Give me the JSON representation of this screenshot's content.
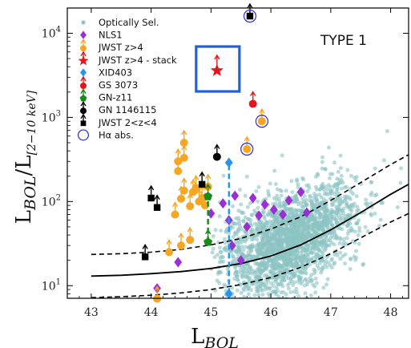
{
  "chart_data": {
    "type": "scatter",
    "annotation": "TYPE 1",
    "xlabel_main": "L",
    "xlabel_sub": "BOL",
    "ylabel_main": "L",
    "ylabel_sub": "BOL",
    "ylabel_slash": "/L",
    "ylabel_sub2": "[2−10 keV]",
    "xlim": [
      42.6,
      48.3
    ],
    "ylim_log10": [
      0.85,
      4.3
    ],
    "y_scale": "log",
    "x_ticks": [
      43,
      44,
      45,
      46,
      47,
      48
    ],
    "x_tick_labels": [
      "43",
      "44",
      "45",
      "46",
      "47",
      "48"
    ],
    "y_ticks": [
      10,
      100,
      1000,
      10000
    ],
    "y_tick_base": "10",
    "y_tick_exponents": [
      "1",
      "2",
      "3",
      "4"
    ],
    "legend": {
      "placement": "top-left",
      "entries": [
        {
          "label": "Optically Sel.",
          "marker": "circle-small",
          "color": "#8cc3c3"
        },
        {
          "label": "NLS1",
          "marker": "diamond",
          "color": "#9a2fd6"
        },
        {
          "label": "JWST z>4",
          "marker": "circle-arrow",
          "color": "#f5a623"
        },
        {
          "label": "JWST z>4 - stack",
          "marker": "star-arrow",
          "color": "#e8131b"
        },
        {
          "label": "XID403",
          "marker": "diamond",
          "color": "#2a93ec"
        },
        {
          "label": "GS 3073",
          "marker": "circle-arrow",
          "color": "#e8131b"
        },
        {
          "label": "GN-z11",
          "marker": "pentagon-arrow",
          "color": "#178a18"
        },
        {
          "label": "GN 1146115",
          "marker": "circle-arrow",
          "color": "#000000"
        },
        {
          "label": "JWST 2<z<4",
          "marker": "square-arrow",
          "color": "#000000"
        },
        {
          "label": "Hα abs.",
          "marker": "open-circle",
          "color": "#3b3bcf"
        }
      ]
    },
    "relation": {
      "median": [
        [
          43,
          13.0
        ],
        [
          43.5,
          13.3
        ],
        [
          44,
          13.9
        ],
        [
          44.5,
          14.7
        ],
        [
          45,
          16.0
        ],
        [
          45.5,
          18.3
        ],
        [
          46,
          22.5
        ],
        [
          46.5,
          30.5
        ],
        [
          47,
          46
        ],
        [
          47.5,
          74
        ],
        [
          48,
          122
        ],
        [
          48.3,
          160
        ]
      ],
      "upper": [
        [
          43,
          23.5
        ],
        [
          43.5,
          24.0
        ],
        [
          44,
          25.0
        ],
        [
          44.5,
          27.0
        ],
        [
          45,
          30.5
        ],
        [
          45.5,
          36.5
        ],
        [
          46,
          47
        ],
        [
          46.5,
          66
        ],
        [
          47,
          103
        ],
        [
          47.5,
          168
        ],
        [
          48,
          275
        ],
        [
          48.3,
          360
        ]
      ],
      "lower": [
        [
          43,
          7.2
        ],
        [
          43.5,
          7.4
        ],
        [
          44,
          7.7
        ],
        [
          44.5,
          8.2
        ],
        [
          45,
          9.0
        ],
        [
          45.5,
          10.3
        ],
        [
          46,
          12.5
        ],
        [
          46.5,
          16.5
        ],
        [
          47,
          24
        ],
        [
          47.5,
          37
        ],
        [
          48,
          57
        ],
        [
          48.3,
          72
        ]
      ]
    },
    "optically_selected_cloud": {
      "n_points": 2200,
      "x_range": [
        45.0,
        48.2
      ],
      "x_peak": 46.3,
      "scatter_dex": 0.28,
      "color": "#8cc3c3"
    },
    "series": [
      {
        "name": "NLS1",
        "points": [
          [
            44.1,
            9.3
          ],
          [
            45.5,
            20.0
          ],
          [
            45.35,
            30.0
          ],
          [
            45.6,
            50.0
          ],
          [
            45.2,
            95.0
          ],
          [
            45.4,
            117.0
          ],
          [
            45.7,
            110.0
          ],
          [
            45.9,
            92.0
          ],
          [
            46.3,
            103.0
          ],
          [
            46.5,
            130.0
          ],
          [
            46.2,
            70.0
          ],
          [
            45.8,
            68.0
          ],
          [
            45.3,
            60.0
          ],
          [
            46.05,
            80.0
          ],
          [
            46.6,
            74.0
          ],
          [
            45.0,
            72.0
          ],
          [
            44.45,
            19.0
          ]
        ]
      },
      {
        "name": "JWST z>4",
        "lower_limits": true,
        "points": [
          [
            44.1,
            7.0
          ],
          [
            44.3,
            25.0
          ],
          [
            44.5,
            30.0
          ],
          [
            44.65,
            35.0
          ],
          [
            44.4,
            70.0
          ],
          [
            44.65,
            88.0
          ],
          [
            44.8,
            100.0
          ],
          [
            44.85,
            110.0
          ],
          [
            44.7,
            130.0
          ],
          [
            44.95,
            150.0
          ],
          [
            44.5,
            108.0
          ],
          [
            44.55,
            135.0
          ],
          [
            44.45,
            230.0
          ],
          [
            44.45,
            300.0
          ],
          [
            44.75,
            145.0
          ],
          [
            44.55,
            330.0
          ],
          [
            44.55,
            500.0
          ],
          [
            44.9,
            90.0
          ],
          [
            45.6,
            420.0
          ],
          [
            45.85,
            900.0
          ]
        ]
      },
      {
        "name": "JWST z>4 - stack",
        "lower_limits": true,
        "points": [
          [
            45.1,
            3600.0
          ]
        ],
        "highlight_box": true
      },
      {
        "name": "XID403",
        "points": [
          [
            45.3,
            8.0
          ],
          [
            45.3,
            290.0
          ]
        ],
        "connector": "dashed",
        "color": "#2a93ec"
      },
      {
        "name": "GS 3073",
        "lower_limits": true,
        "points": [
          [
            45.7,
            1450.0
          ]
        ]
      },
      {
        "name": "GN-z11",
        "lower_limits": true,
        "points": [
          [
            44.95,
            33.0
          ],
          [
            44.95,
            115.0
          ]
        ],
        "connector": "dashed",
        "color": "#178a18"
      },
      {
        "name": "GN 1146115",
        "lower_limits": true,
        "points": [
          [
            45.1,
            340.0
          ]
        ]
      },
      {
        "name": "JWST 2<z<4",
        "lower_limits": true,
        "points": [
          [
            43.9,
            22.0
          ],
          [
            44.0,
            110.0
          ],
          [
            44.1,
            85.0
          ],
          [
            44.85,
            160.0
          ],
          [
            45.65,
            16000.0
          ]
        ]
      },
      {
        "name": "Hα abs.",
        "points": [
          [
            45.65,
            16000.0
          ],
          [
            45.6,
            420.0
          ],
          [
            45.85,
            900.0
          ]
        ]
      }
    ]
  }
}
